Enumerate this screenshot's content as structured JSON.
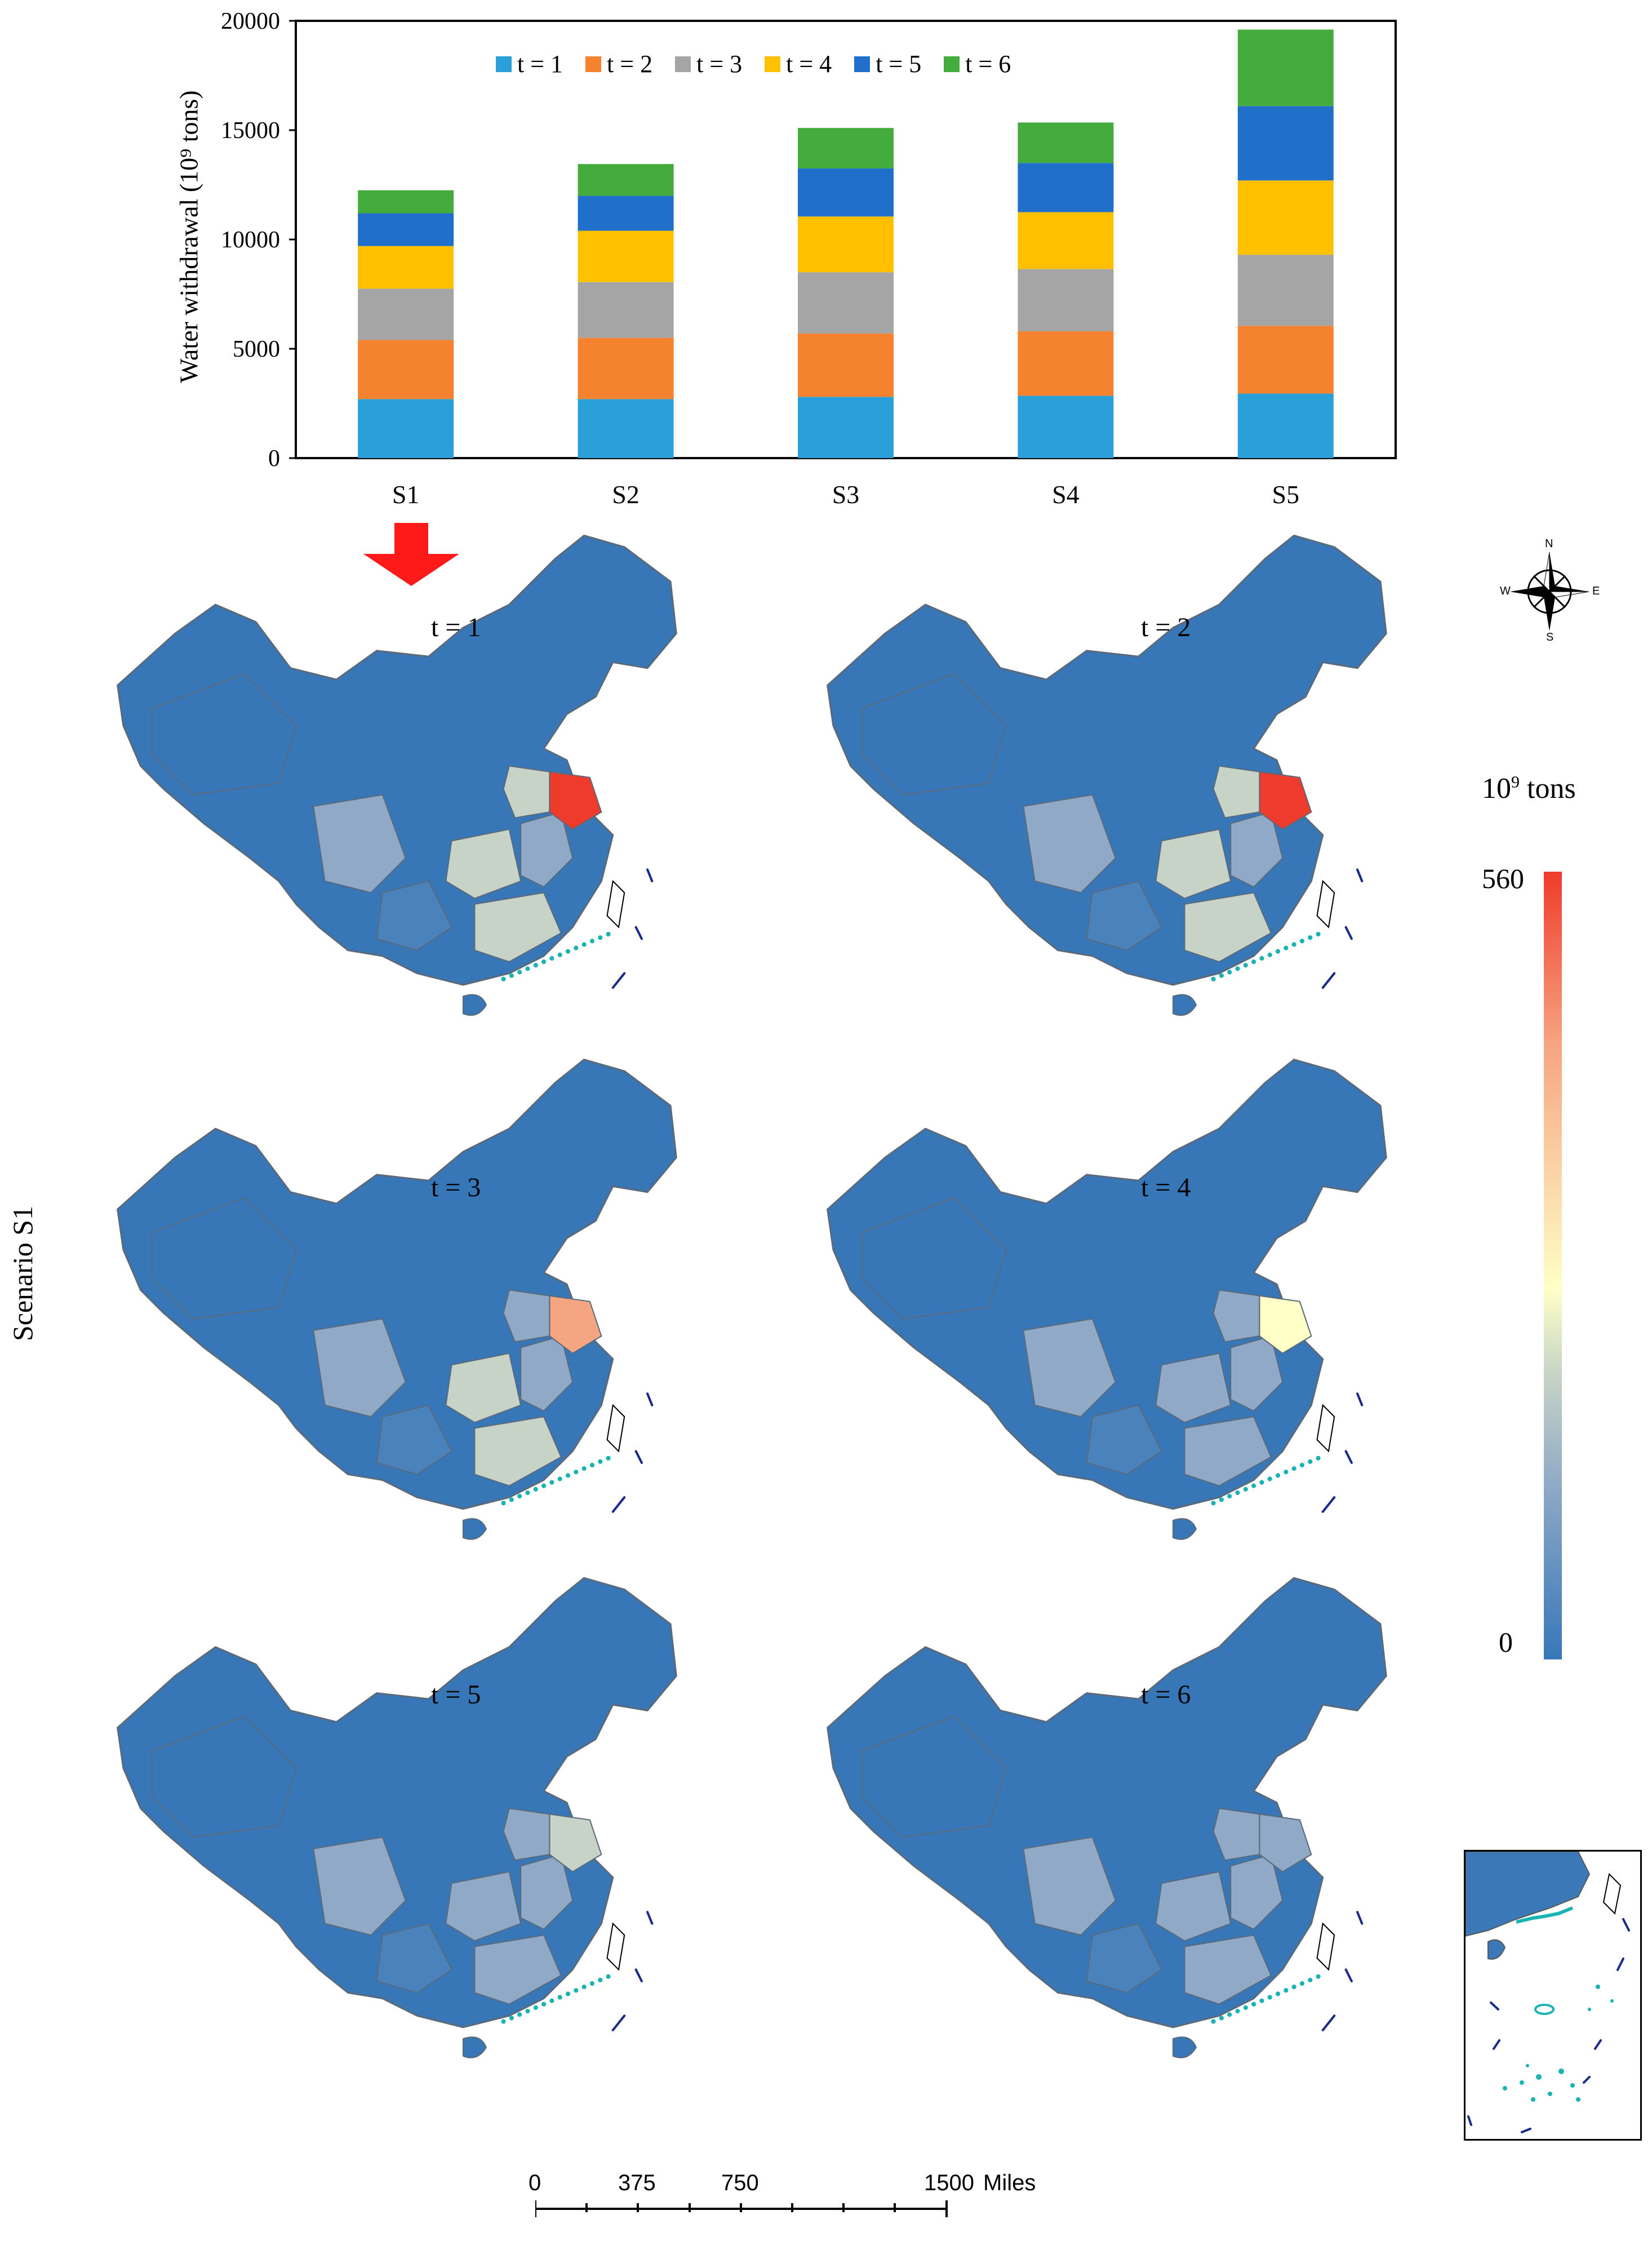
{
  "chart_data": {
    "type": "bar",
    "stacked": true,
    "categories": [
      "S1",
      "S2",
      "S3",
      "S4",
      "S5"
    ],
    "series": [
      {
        "name": "t = 1",
        "color": "#2a9fd8",
        "values": [
          2700,
          2700,
          2800,
          2850,
          2950
        ]
      },
      {
        "name": "t = 2",
        "color": "#f5822f",
        "values": [
          2700,
          2800,
          2900,
          2950,
          3100
        ]
      },
      {
        "name": "t = 3",
        "color": "#a5a5a5",
        "values": [
          2350,
          2550,
          2800,
          2850,
          3250
        ]
      },
      {
        "name": "t = 4",
        "color": "#ffc000",
        "values": [
          1950,
          2350,
          2550,
          2600,
          3400
        ]
      },
      {
        "name": "t = 5",
        "color": "#1f6fcb",
        "values": [
          1500,
          1600,
          2200,
          2250,
          3400
        ]
      },
      {
        "name": "t = 6",
        "color": "#44ac3c",
        "values": [
          1050,
          1450,
          1850,
          1850,
          3500
        ]
      }
    ],
    "ylabel": "Water withdrawal (10⁹ tons)",
    "ylim": [
      0,
      20000
    ],
    "yticks": [
      "0",
      "5000",
      "10000",
      "15000",
      "20000"
    ],
    "legend_position": "top-center",
    "grid": false
  },
  "arrow_color": "#ff1a1a",
  "scenario_label": "Scenario S1",
  "maps": [
    {
      "label": "t = 1"
    },
    {
      "label": "t = 2"
    },
    {
      "label": "t = 3"
    },
    {
      "label": "t = 4"
    },
    {
      "label": "t = 5"
    },
    {
      "label": "t = 6"
    }
  ],
  "colorbar": {
    "unit_base": "10",
    "unit_exp": "9",
    "unit_suffix": " tons",
    "max_label": "560",
    "min_label": "0",
    "colors": [
      "#ef3b2c",
      "#f6a582",
      "#ffffc8",
      "#c6d3c6",
      "#8fa9c6",
      "#3777b8"
    ]
  },
  "compass": {
    "n": "N",
    "s": "S",
    "e": "E",
    "w": "W"
  },
  "scale_bar": {
    "labels": [
      "0",
      "375",
      "750",
      "1500"
    ],
    "unit": "Miles"
  }
}
